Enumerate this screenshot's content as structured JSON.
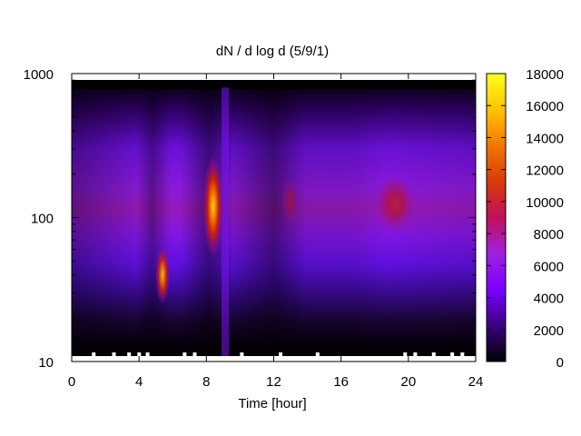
{
  "chart_data": {
    "type": "heatmap",
    "title": "dN / d log d (5/9/1)",
    "xlabel": "Time [hour]",
    "ylabel": "",
    "xlim": [
      0,
      24
    ],
    "ylim": [
      10,
      1000
    ],
    "y_scale": "log",
    "x_ticks": [
      "0",
      "4",
      "8",
      "12",
      "16",
      "20",
      "24"
    ],
    "y_ticks": [
      "10",
      "100",
      "1000"
    ],
    "colorbar": {
      "range": [
        0,
        18000
      ],
      "ticks": [
        "0",
        "2000",
        "4000",
        "6000",
        "8000",
        "10000",
        "12000",
        "14000",
        "16000",
        "18000"
      ],
      "palette": [
        "#000000",
        "#3c0080",
        "#7a00ff",
        "#a020e0",
        "#c0105a",
        "#d83a08",
        "#f07800",
        "#ffc400",
        "#ffff20"
      ]
    },
    "features": [
      {
        "time_hour": 5.4,
        "diameter": 40,
        "value": 14500
      },
      {
        "time_hour": 8.4,
        "diameter": 120,
        "value": 16500
      },
      {
        "time_hour": 19.2,
        "diameter": 125,
        "value": 10500
      },
      {
        "time_hour": 13.0,
        "diameter": 130,
        "value": 6500
      }
    ],
    "grid": false,
    "legend": "colorbar-right"
  }
}
